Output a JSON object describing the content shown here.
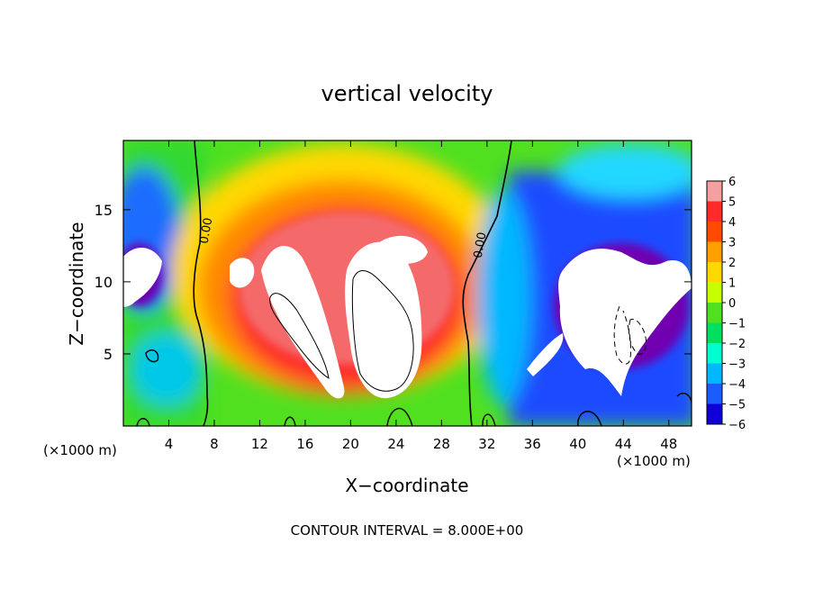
{
  "chart_data": {
    "type": "heatmap",
    "title": "vertical velocity",
    "xlabel": "X−coordinate",
    "ylabel": "Z−coordinate",
    "x_unit_left": "(×1000 m)",
    "x_unit_right": "(×1000 m)",
    "footer": "CONTOUR INTERVAL = 8.000E+00",
    "xlim": [
      0,
      50
    ],
    "ylim": [
      0,
      19.8
    ],
    "x_ticks": [
      4,
      8,
      12,
      16,
      20,
      24,
      28,
      32,
      36,
      40,
      44,
      48
    ],
    "y_ticks": [
      5,
      10,
      15
    ],
    "colorbar": {
      "levels": [
        6,
        5,
        4,
        3,
        2,
        1,
        0,
        -1,
        -2,
        -3,
        -4,
        -5,
        -6
      ],
      "labels": [
        "6",
        "5",
        "4",
        "3",
        "2",
        "1",
        "0",
        "−1",
        "−2",
        "−3",
        "−4",
        "−5",
        "−6"
      ],
      "colors": [
        "#f4a0a0",
        "#ff2a2a",
        "#ff4a00",
        "#ffa000",
        "#ffd800",
        "#c8ff00",
        "#50e020",
        "#00e060",
        "#00ffd0",
        "#00b8ff",
        "#1a5cff",
        "#1000d8",
        "#7000b0"
      ]
    },
    "contour_labels": [
      {
        "text": "0.00",
        "x": 7.6,
        "y": 13.5
      },
      {
        "text": "0.00",
        "x": 31.7,
        "y": 12.5
      }
    ],
    "features": [
      {
        "name": "upper positive dome",
        "x": [
          8,
          31
        ],
        "y": [
          2,
          18
        ],
        "value": 4
      },
      {
        "name": "strong updraft core left",
        "x": [
          11,
          19
        ],
        "y": [
          4,
          12
        ],
        "value": 7
      },
      {
        "name": "strong updraft core center",
        "x": [
          18.5,
          26
        ],
        "y": [
          2,
          11.5
        ],
        "value": 8
      },
      {
        "name": "strong downdraft right",
        "x": [
          36,
          50
        ],
        "y": [
          1,
          12
        ],
        "value": -7
      },
      {
        "name": "downdraft upper left",
        "x": [
          0,
          3.5
        ],
        "y": [
          8,
          12
        ],
        "value": -7
      }
    ]
  }
}
